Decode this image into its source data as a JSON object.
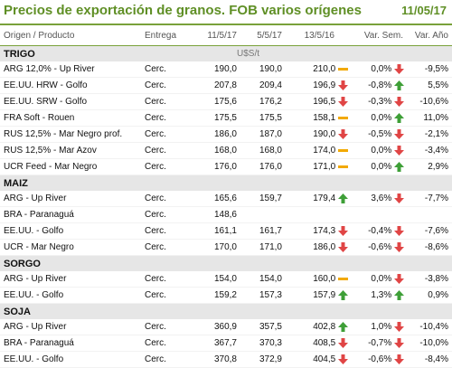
{
  "title": "Precios de exportación de granos. FOB varios orígenes",
  "date": "11/05/17",
  "columns": [
    "Origen / Producto",
    "Entrega",
    "11/5/17",
    "5/5/17",
    "13/5/16",
    "Var. Sem.",
    "Var. Año"
  ],
  "unit": "U$S/t",
  "sections": [
    {
      "name": "TRIGO",
      "rows": [
        {
          "origin": "ARG 12,0% - Up River",
          "entrega": "Cerc.",
          "p1": "190,0",
          "p2": "190,0",
          "p3": "210,0",
          "ind3": "flat",
          "sem": "0,0%",
          "indsem": "down",
          "anio": "-9,5%"
        },
        {
          "origin": "EE.UU. HRW - Golfo",
          "entrega": "Cerc.",
          "p1": "207,8",
          "p2": "209,4",
          "p3": "196,9",
          "ind3": "down",
          "sem": "-0,8%",
          "indsem": "up",
          "anio": "5,5%"
        },
        {
          "origin": "EE.UU. SRW - Golfo",
          "entrega": "Cerc.",
          "p1": "175,6",
          "p2": "176,2",
          "p3": "196,5",
          "ind3": "down",
          "sem": "-0,3%",
          "indsem": "down",
          "anio": "-10,6%"
        },
        {
          "origin": "FRA Soft - Rouen",
          "entrega": "Cerc.",
          "p1": "175,5",
          "p2": "175,5",
          "p3": "158,1",
          "ind3": "flat",
          "sem": "0,0%",
          "indsem": "up",
          "anio": "11,0%"
        },
        {
          "origin": "RUS 12,5% - Mar Negro prof.",
          "entrega": "Cerc.",
          "p1": "186,0",
          "p2": "187,0",
          "p3": "190,0",
          "ind3": "down",
          "sem": "-0,5%",
          "indsem": "down",
          "anio": "-2,1%"
        },
        {
          "origin": "RUS 12,5% - Mar Azov",
          "entrega": "Cerc.",
          "p1": "168,0",
          "p2": "168,0",
          "p3": "174,0",
          "ind3": "flat",
          "sem": "0,0%",
          "indsem": "down",
          "anio": "-3,4%"
        },
        {
          "origin": "UCR Feed - Mar Negro",
          "entrega": "Cerc.",
          "p1": "176,0",
          "p2": "176,0",
          "p3": "171,0",
          "ind3": "flat",
          "sem": "0,0%",
          "indsem": "up",
          "anio": "2,9%"
        }
      ]
    },
    {
      "name": "MAIZ",
      "rows": [
        {
          "origin": "ARG - Up River",
          "entrega": "Cerc.",
          "p1": "165,6",
          "p2": "159,7",
          "p3": "179,4",
          "ind3": "up",
          "sem": "3,6%",
          "indsem": "down",
          "anio": "-7,7%"
        },
        {
          "origin": "BRA - Paranaguá",
          "entrega": "Cerc.",
          "p1": "148,6",
          "p2": "",
          "p3": "",
          "ind3": "",
          "sem": "",
          "indsem": "",
          "anio": ""
        },
        {
          "origin": "EE.UU. - Golfo",
          "entrega": "Cerc.",
          "p1": "161,1",
          "p2": "161,7",
          "p3": "174,3",
          "ind3": "down",
          "sem": "-0,4%",
          "indsem": "down",
          "anio": "-7,6%"
        },
        {
          "origin": "UCR - Mar Negro",
          "entrega": "Cerc.",
          "p1": "170,0",
          "p2": "171,0",
          "p3": "186,0",
          "ind3": "down",
          "sem": "-0,6%",
          "indsem": "down",
          "anio": "-8,6%"
        }
      ]
    },
    {
      "name": "SORGO",
      "rows": [
        {
          "origin": "ARG - Up River",
          "entrega": "Cerc.",
          "p1": "154,0",
          "p2": "154,0",
          "p3": "160,0",
          "ind3": "flat",
          "sem": "0,0%",
          "indsem": "down",
          "anio": "-3,8%"
        },
        {
          "origin": "EE.UU. - Golfo",
          "entrega": "Cerc.",
          "p1": "159,2",
          "p2": "157,3",
          "p3": "157,9",
          "ind3": "up",
          "sem": "1,3%",
          "indsem": "up",
          "anio": "0,9%"
        }
      ]
    },
    {
      "name": "SOJA",
      "rows": [
        {
          "origin": "ARG - Up River",
          "entrega": "Cerc.",
          "p1": "360,9",
          "p2": "357,5",
          "p3": "402,8",
          "ind3": "up",
          "sem": "1,0%",
          "indsem": "down",
          "anio": "-10,4%"
        },
        {
          "origin": "BRA - Paranaguá",
          "entrega": "Cerc.",
          "p1": "367,7",
          "p2": "370,3",
          "p3": "408,5",
          "ind3": "down",
          "sem": "-0,7%",
          "indsem": "down",
          "anio": "-10,0%"
        },
        {
          "origin": "EE.UU. - Golfo",
          "entrega": "Cerc.",
          "p1": "370,8",
          "p2": "372,9",
          "p3": "404,5",
          "ind3": "down",
          "sem": "-0,6%",
          "indsem": "down",
          "anio": "-8,4%"
        }
      ]
    }
  ],
  "colors": {
    "green": "#3e9f37",
    "red": "#e04545",
    "amber": "#f2a900",
    "title": "#5f8f25"
  }
}
